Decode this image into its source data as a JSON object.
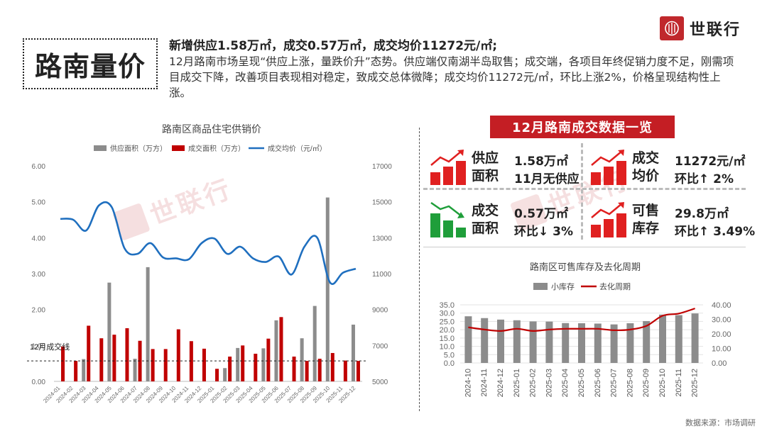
{
  "page": {
    "section_title": "路南量价",
    "headline": "新增供应1.58万㎡，成交0.57万㎡，成交均价11272元/㎡;",
    "summary": "12月路南市场呈现“供应上涨，量跌价升”态势。供应端仅南湖半岛取售；成交端，各项目年终促销力度不足，刚需项目成交下降，改善项目表现相对稳定，致成交总体微降；成交均价11272元/㎡，环比上涨2%，价格呈现结构性上涨。",
    "logo_text": "世联行",
    "watermark_text": "世联行",
    "source": "数据来源：市场调研"
  },
  "kpi_panel": {
    "title": "12月路南成交数据一览",
    "items": [
      {
        "label": "供应面积",
        "value": "1.58万㎡",
        "sub": "11月无供应",
        "trend": "up"
      },
      {
        "label": "成交均价",
        "value": "11272元/㎡",
        "sub": "环比↑ 2%",
        "trend": "up"
      },
      {
        "label": "成交面积",
        "value": "0.57万㎡",
        "sub": "环比↓ 3%",
        "trend": "down"
      },
      {
        "label": "可售库存",
        "value": "29.8万㎡",
        "sub": "环比↑ 3.49%",
        "trend": "up"
      }
    ]
  },
  "colors": {
    "supply": "#8c8c8c",
    "deal": "#c00000",
    "price": "#1f6fbf",
    "inventory": "#8c8c8c",
    "cycle": "#c00000",
    "accent": "#c41e24",
    "up_icon": "#e02020",
    "down_icon": "#1f9e3a"
  },
  "chart_data": [
    {
      "type": "bar",
      "title": "路南区商品住宅供销价",
      "categories": [
        "2024-01",
        "2024-02",
        "2024-03",
        "2024-04",
        "2024-05",
        "2024-06",
        "2024-07",
        "2024-08",
        "2024-09",
        "2024-10",
        "2024-11",
        "2024-12",
        "2025-01",
        "2025-02",
        "2025-03",
        "2025-04",
        "2025-05",
        "2025-06",
        "2025-07",
        "2025-08",
        "2025-09",
        "2025-10",
        "2025-11",
        "2025-12"
      ],
      "y_ticks": [
        "6.00",
        "5.00",
        "4.00",
        "3.00",
        "2.00",
        "1.00",
        "0.00"
      ],
      "y2_ticks": [
        "17000",
        "15000",
        "13000",
        "11000",
        "9000",
        "7000",
        "5000"
      ],
      "ylim": [
        0,
        6
      ],
      "y2lim": [
        5000,
        17000
      ],
      "series": [
        {
          "name": "供应面积（万方）",
          "kind": "bar",
          "values": [
            0,
            0,
            0.62,
            0,
            2.75,
            0,
            0.63,
            3.18,
            0,
            0,
            0,
            0,
            0,
            0.37,
            0.93,
            0,
            0.92,
            1.7,
            0,
            1.2,
            2.1,
            5.12,
            0,
            1.58
          ]
        },
        {
          "name": "成交面积（万方）",
          "kind": "bar",
          "values": [
            0.97,
            0.57,
            1.55,
            1.2,
            1.3,
            1.48,
            1.13,
            0.9,
            0.9,
            1.45,
            1.12,
            0.91,
            0.35,
            0.69,
            1.0,
            0.77,
            1.19,
            1.79,
            0.69,
            0.57,
            0.63,
            0.79,
            0.58,
            0.57
          ]
        },
        {
          "name": "成交均价（元/㎡）",
          "kind": "line",
          "axis": "y2",
          "values": [
            14050,
            14000,
            13400,
            14800,
            14700,
            12400,
            12100,
            12700,
            11900,
            11850,
            11800,
            12700,
            12950,
            12100,
            12500,
            11850,
            11650,
            11950,
            10950,
            12500,
            13000,
            10500,
            11050,
            11272
          ]
        }
      ],
      "annotation": "12月成交线",
      "annotation_value": 0.57,
      "legend": "top"
    },
    {
      "type": "bar",
      "title": "路南区可售库存及去化周期",
      "categories": [
        "2024-10",
        "2024-11",
        "2024-12",
        "2025-01",
        "2025-02",
        "2025-03",
        "2025-04",
        "2025-05",
        "2025-06",
        "2025-07",
        "2025-08",
        "2025-09",
        "2025-10",
        "2025-11",
        "2025-12"
      ],
      "y_ticks": [
        "35.0",
        "30.0",
        "25.0",
        "20.0",
        "15.0",
        "10.0",
        "5.0",
        "0.0"
      ],
      "y2_ticks": [
        "40.00",
        "30.00",
        "20.00",
        "10.00",
        "0.00"
      ],
      "ylim": [
        0,
        35
      ],
      "y2lim": [
        0,
        40
      ],
      "series": [
        {
          "name": "小库存",
          "kind": "bar",
          "values": [
            28.1,
            27.0,
            26.1,
            25.7,
            25.0,
            24.9,
            24.0,
            23.9,
            23.7,
            23.2,
            23.9,
            25.2,
            29.1,
            28.8,
            29.8
          ]
        },
        {
          "name": "去化周期",
          "kind": "line",
          "axis": "y2",
          "values": [
            24.5,
            23.0,
            22.0,
            23.5,
            22.0,
            23.0,
            23.5,
            23.5,
            23.5,
            22.5,
            23.0,
            25.5,
            32.5,
            34.0,
            37.5
          ]
        }
      ],
      "legend": "top"
    }
  ]
}
